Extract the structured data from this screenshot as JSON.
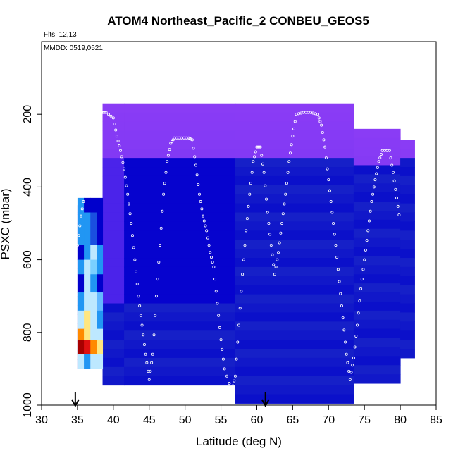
{
  "chart_data": {
    "type": "heatmap",
    "title": "ATOM4 Northeast_Pacific_2 CONBEU_GEOS5",
    "flights_label": "Flts: 12,13",
    "date_label": "MMDD: 0519,0521",
    "xlabel": "Latitude (deg N)",
    "ylabel": "PSXC (mbar)",
    "xlim": [
      30,
      85
    ],
    "ylim": [
      1000,
      0
    ],
    "x_ticks": [
      "30",
      "35",
      "40",
      "45",
      "50",
      "55",
      "60",
      "65",
      "70",
      "75",
      "80",
      "85"
    ],
    "y_ticks": [
      "200",
      "400",
      "600",
      "800",
      "1000"
    ],
    "grid": false,
    "arrow_latitudes": [
      34.7,
      61.2
    ],
    "columns": [
      {
        "lat_start": 35.0,
        "lat_end": 38.5,
        "p_top": 450,
        "p_bottom": 900
      },
      {
        "lat_start": 38.5,
        "lat_end": 41.5,
        "p_top": 170,
        "p_bottom": 950
      },
      {
        "lat_start": 41.5,
        "lat_end": 57.0,
        "p_top": 170,
        "p_bottom": 950
      },
      {
        "lat_start": 57.0,
        "lat_end": 73.5,
        "p_top": 170,
        "p_bottom": 1000
      },
      {
        "lat_start": 73.5,
        "lat_end": 80.0,
        "p_top": 240,
        "p_bottom": 950
      },
      {
        "lat_start": 80.0,
        "lat_end": 82.0,
        "p_top": 270,
        "p_bottom": 880
      }
    ],
    "flight_track": [
      [
        35,
        560
      ],
      [
        35.5,
        480
      ],
      [
        36,
        420
      ],
      [
        36.5,
        380
      ],
      [
        37,
        320
      ],
      [
        37.5,
        260
      ],
      [
        38,
        200
      ],
      [
        38.5,
        195
      ],
      [
        39,
        195
      ],
      [
        40,
        210
      ],
      [
        40.5,
        260
      ],
      [
        41,
        300
      ],
      [
        41.5,
        350
      ],
      [
        42,
        420
      ],
      [
        42.5,
        500
      ],
      [
        43,
        600
      ],
      [
        43.5,
        700
      ],
      [
        44,
        780
      ],
      [
        44.5,
        860
      ],
      [
        45,
        930
      ],
      [
        45.5,
        860
      ],
      [
        46,
        700
      ],
      [
        46.5,
        560
      ],
      [
        47,
        420
      ],
      [
        47.5,
        330
      ],
      [
        48,
        280
      ],
      [
        48.5,
        265
      ],
      [
        49.5,
        265
      ],
      [
        50.5,
        265
      ],
      [
        51,
        270
      ],
      [
        51.5,
        340
      ],
      [
        52,
        420
      ],
      [
        52.5,
        480
      ],
      [
        53,
        520
      ],
      [
        53.5,
        580
      ],
      [
        54,
        620
      ],
      [
        54.5,
        720
      ],
      [
        55,
        820
      ],
      [
        55.5,
        900
      ],
      [
        56.5,
        960
      ],
      [
        57,
        920
      ],
      [
        57.5,
        780
      ],
      [
        58,
        640
      ],
      [
        58.5,
        520
      ],
      [
        59,
        420
      ],
      [
        59.5,
        330
      ],
      [
        60,
        290
      ],
      [
        60.5,
        290
      ],
      [
        61,
        360
      ],
      [
        61.5,
        470
      ],
      [
        62,
        560
      ],
      [
        62.5,
        640
      ],
      [
        63,
        580
      ],
      [
        63.5,
        500
      ],
      [
        64,
        420
      ],
      [
        64.5,
        330
      ],
      [
        65,
        260
      ],
      [
        65.5,
        200
      ],
      [
        66.5,
        195
      ],
      [
        67.5,
        195
      ],
      [
        68.5,
        200
      ],
      [
        69,
        230
      ],
      [
        69.5,
        290
      ],
      [
        70,
        380
      ],
      [
        70.5,
        470
      ],
      [
        71,
        560
      ],
      [
        71.5,
        660
      ],
      [
        72,
        760
      ],
      [
        72.5,
        860
      ],
      [
        73,
        930
      ],
      [
        73.5,
        870
      ],
      [
        74,
        780
      ],
      [
        74.5,
        680
      ],
      [
        75,
        600
      ],
      [
        75.5,
        520
      ],
      [
        76,
        440
      ],
      [
        76.5,
        380
      ],
      [
        77,
        330
      ],
      [
        77.5,
        300
      ],
      [
        78.5,
        300
      ],
      [
        79,
        360
      ],
      [
        79.5,
        430
      ],
      [
        80,
        500
      ]
    ],
    "background_color": "#1f10c8",
    "colorscale": [
      "#0000cc",
      "#5a2af0",
      "#2196f3",
      "#bde8ff",
      "#ffe680",
      "#ff8a00",
      "#e01010",
      "#a80000"
    ]
  }
}
